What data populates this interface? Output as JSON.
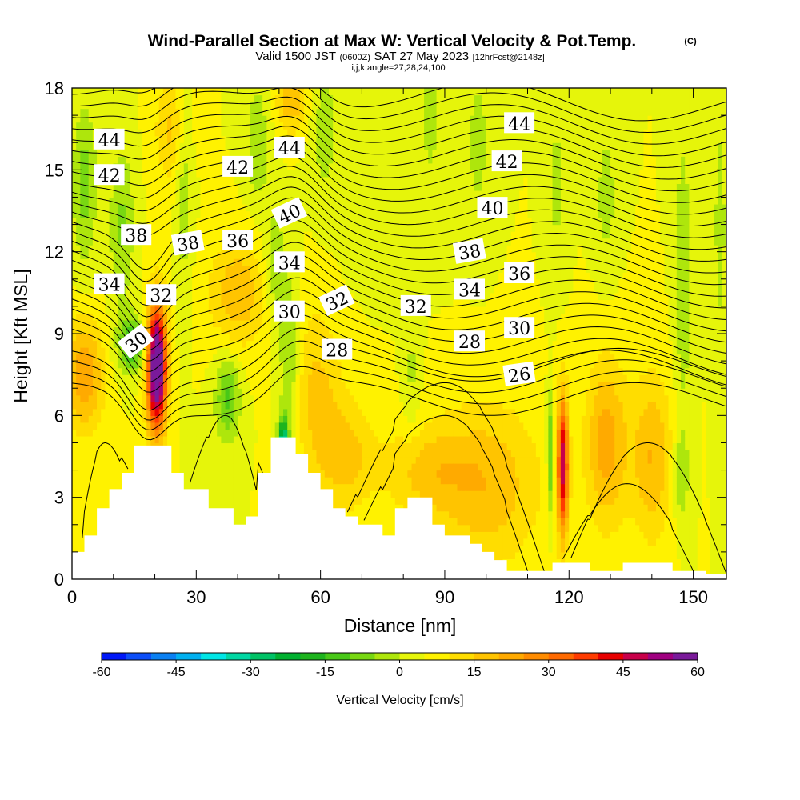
{
  "title": {
    "main": "Wind-Parallel Section at Max W: Vertical Velocity & Pot.Temp.",
    "copyright": "(C)",
    "valid_prefix": "Valid 1500 JST",
    "valid_utc": "(0600Z)",
    "valid_date": "SAT 27 May 2023",
    "forecast": "[12hrFcst@2148z]",
    "params": "i,j,k,angle=27,28,24,100"
  },
  "chart_data": {
    "type": "heatmap",
    "xlabel": "Distance [nm]",
    "ylabel": "Height [Kft MSL]",
    "xlim": [
      0,
      158
    ],
    "ylim": [
      0,
      18
    ],
    "x_ticks": [
      0,
      30,
      60,
      90,
      120,
      150
    ],
    "y_ticks": [
      0,
      3,
      6,
      9,
      12,
      15,
      18
    ],
    "fill_variable": "Vertical Velocity [cm/s]",
    "fill_levels": [
      -60,
      -55,
      -50,
      -45,
      -40,
      -35,
      -30,
      -25,
      -20,
      -15,
      -10,
      -5,
      0,
      5,
      10,
      15,
      20,
      25,
      30,
      35,
      40,
      45,
      50,
      55,
      60
    ],
    "colorbar_ticks": [
      "-60",
      "-45",
      "-30",
      "-15",
      "0",
      "15",
      "30",
      "45",
      "60"
    ],
    "colorbar_colors": [
      "#0018f8",
      "#0c4ef8",
      "#0a80f2",
      "#00b0f0",
      "#00e6e6",
      "#00d7a3",
      "#00c266",
      "#00b030",
      "#1eb41e",
      "#48c818",
      "#78d812",
      "#aee60c",
      "#e6f50a",
      "#fff200",
      "#ffdd00",
      "#ffc400",
      "#ffaa00",
      "#ff8c00",
      "#ff6a00",
      "#ff3c00",
      "#e80000",
      "#c8004a",
      "#a00080",
      "#7a1a9a"
    ],
    "contour_variable": "Potential Temperature",
    "contour_levels": [
      26,
      28,
      30,
      32,
      34,
      36,
      38,
      40,
      42,
      44
    ],
    "contour_labels": [
      {
        "text": "44",
        "x": 9,
        "y": 16.1,
        "angle": 0
      },
      {
        "text": "42",
        "x": 9,
        "y": 14.8,
        "angle": 0
      },
      {
        "text": "38",
        "x": 15.5,
        "y": 12.6,
        "angle": 0
      },
      {
        "text": "34",
        "x": 9,
        "y": 10.8,
        "angle": 0
      },
      {
        "text": "30",
        "x": 15.5,
        "y": 8.7,
        "angle": -38
      },
      {
        "text": "32",
        "x": 21.5,
        "y": 10.4,
        "angle": 0
      },
      {
        "text": "38",
        "x": 28,
        "y": 12.3,
        "angle": -10
      },
      {
        "text": "36",
        "x": 40,
        "y": 12.4,
        "angle": 0
      },
      {
        "text": "42",
        "x": 40,
        "y": 15.1,
        "angle": 0
      },
      {
        "text": "44",
        "x": 52.5,
        "y": 15.8,
        "angle": 0
      },
      {
        "text": "40",
        "x": 52.5,
        "y": 13.4,
        "angle": -25
      },
      {
        "text": "34",
        "x": 52.5,
        "y": 11.6,
        "angle": 0
      },
      {
        "text": "30",
        "x": 52.5,
        "y": 9.8,
        "angle": 0
      },
      {
        "text": "32",
        "x": 64,
        "y": 10.2,
        "angle": -25
      },
      {
        "text": "28",
        "x": 64,
        "y": 8.4,
        "angle": 0
      },
      {
        "text": "32",
        "x": 83,
        "y": 10.0,
        "angle": 0
      },
      {
        "text": "38",
        "x": 96,
        "y": 12.0,
        "angle": -10
      },
      {
        "text": "34",
        "x": 96,
        "y": 10.6,
        "angle": 0
      },
      {
        "text": "28",
        "x": 96,
        "y": 8.7,
        "angle": 0
      },
      {
        "text": "44",
        "x": 108,
        "y": 16.7,
        "angle": 0
      },
      {
        "text": "42",
        "x": 105,
        "y": 15.3,
        "angle": 0
      },
      {
        "text": "40",
        "x": 101.5,
        "y": 13.6,
        "angle": 0
      },
      {
        "text": "36",
        "x": 108,
        "y": 11.2,
        "angle": 0
      },
      {
        "text": "30",
        "x": 108,
        "y": 9.2,
        "angle": 0
      },
      {
        "text": "26",
        "x": 108,
        "y": 7.5,
        "angle": -8
      }
    ],
    "terrain_profile": [
      [
        0,
        1.0
      ],
      [
        1,
        1.0
      ],
      [
        3,
        1.0
      ],
      [
        3,
        1.6
      ],
      [
        6,
        1.6
      ],
      [
        6,
        2.6
      ],
      [
        9,
        2.6
      ],
      [
        9,
        3.3
      ],
      [
        12,
        3.3
      ],
      [
        12,
        3.9
      ],
      [
        15,
        3.9
      ],
      [
        15,
        4.9
      ],
      [
        24,
        4.9
      ],
      [
        24,
        3.9
      ],
      [
        27,
        3.9
      ],
      [
        27,
        3.3
      ],
      [
        33,
        3.3
      ],
      [
        33,
        2.6
      ],
      [
        39,
        2.6
      ],
      [
        39,
        2.0
      ],
      [
        42,
        2.0
      ],
      [
        42,
        2.3
      ],
      [
        45,
        2.3
      ],
      [
        45,
        3.9
      ],
      [
        48,
        3.9
      ],
      [
        48,
        5.2
      ],
      [
        54,
        5.2
      ],
      [
        54,
        4.6
      ],
      [
        57,
        4.6
      ],
      [
        57,
        3.9
      ],
      [
        60,
        3.9
      ],
      [
        60,
        3.3
      ],
      [
        63,
        3.3
      ],
      [
        63,
        2.6
      ],
      [
        66,
        2.6
      ],
      [
        66,
        2.3
      ],
      [
        69,
        2.3
      ],
      [
        69,
        2.0
      ],
      [
        75,
        2.0
      ],
      [
        75,
        1.6
      ],
      [
        78,
        1.6
      ],
      [
        78,
        2.6
      ],
      [
        81,
        2.6
      ],
      [
        81,
        3.0
      ],
      [
        87,
        3.0
      ],
      [
        87,
        2.0
      ],
      [
        90,
        2.0
      ],
      [
        90,
        1.6
      ],
      [
        96,
        1.6
      ],
      [
        96,
        1.3
      ],
      [
        99,
        1.3
      ],
      [
        99,
        1.0
      ],
      [
        102,
        1.0
      ],
      [
        102,
        0.7
      ],
      [
        105,
        0.7
      ],
      [
        105,
        0.3
      ],
      [
        116,
        0.3
      ],
      [
        116,
        0.6
      ],
      [
        125,
        0.6
      ],
      [
        125,
        0.3
      ],
      [
        133,
        0.3
      ],
      [
        133,
        0.6
      ],
      [
        145,
        0.6
      ],
      [
        145,
        0.3
      ],
      [
        153,
        0.3
      ],
      [
        153,
        0.2
      ]
    ],
    "w_features": [
      {
        "x": 20.5,
        "y": 7.8,
        "sx": 2.3,
        "sy": 2.3,
        "w": 65
      },
      {
        "x": 14.5,
        "y": 8.6,
        "sx": 3.5,
        "sy": 1.0,
        "w": -20
      },
      {
        "x": 37.5,
        "y": 6.6,
        "sx": 3.0,
        "sy": 1.6,
        "w": -16
      },
      {
        "x": 51,
        "y": 4.8,
        "sx": 1.2,
        "sy": 1.0,
        "w": -45
      },
      {
        "x": 52.5,
        "y": 8.0,
        "sx": 2.5,
        "sy": 3.2,
        "w": -12
      },
      {
        "x": 49,
        "y": 11.5,
        "sx": 2.5,
        "sy": 2.0,
        "w": -10
      },
      {
        "x": 118.5,
        "y": 4.2,
        "sx": 1.3,
        "sy": 2.5,
        "w": 42
      },
      {
        "x": 115.5,
        "y": 4.5,
        "sx": 0.8,
        "sy": 2.3,
        "w": -18
      },
      {
        "x": 129,
        "y": 5.0,
        "sx": 5,
        "sy": 3,
        "w": 18
      },
      {
        "x": 100,
        "y": 3.5,
        "sx": 13,
        "sy": 3.0,
        "w": 14
      },
      {
        "x": 140,
        "y": 4.5,
        "sx": 5,
        "sy": 3.0,
        "w": 15
      },
      {
        "x": 3,
        "y": 7.5,
        "sx": 4.5,
        "sy": 2.0,
        "w": 20
      },
      {
        "x": 40,
        "y": 10.5,
        "sx": 7,
        "sy": 2.0,
        "w": 14
      },
      {
        "x": 59,
        "y": 7,
        "sx": 6,
        "sy": 3.0,
        "w": 11
      },
      {
        "x": 66,
        "y": 4.5,
        "sx": 7,
        "sy": 2.0,
        "w": 12
      },
      {
        "x": 85,
        "y": 4.0,
        "sx": 10,
        "sy": 1.6,
        "w": 10
      },
      {
        "x": 24,
        "y": 16.5,
        "sx": 4,
        "sy": 2.0,
        "w": 11
      },
      {
        "x": 53,
        "y": 17.5,
        "sx": 4,
        "sy": 1.2,
        "w": 13
      },
      {
        "x": 3,
        "y": 14.5,
        "sx": 3,
        "sy": 3.0,
        "w": -12
      },
      {
        "x": 12,
        "y": 13.0,
        "sx": 3,
        "sy": 3.0,
        "w": -11
      },
      {
        "x": 27,
        "y": 14.5,
        "sx": 2,
        "sy": 4.0,
        "w": -9
      },
      {
        "x": 45,
        "y": 16.0,
        "sx": 3,
        "sy": 2.5,
        "w": -9
      },
      {
        "x": 61,
        "y": 16.5,
        "sx": 3.5,
        "sy": 2.5,
        "w": -8
      },
      {
        "x": 78,
        "y": 11.8,
        "sx": 9,
        "sy": 1.2,
        "w": -5
      },
      {
        "x": 82,
        "y": 7.5,
        "sx": 2,
        "sy": 2.5,
        "w": -6
      },
      {
        "x": 86.5,
        "y": 17.0,
        "sx": 1.8,
        "sy": 2.0,
        "w": -10
      },
      {
        "x": 98,
        "y": 16.0,
        "sx": 3,
        "sy": 3.0,
        "w": -7
      },
      {
        "x": 117,
        "y": 14.5,
        "sx": 2,
        "sy": 3.0,
        "w": -7
      },
      {
        "x": 129,
        "y": 14.0,
        "sx": 2.5,
        "sy": 2.5,
        "w": -8
      },
      {
        "x": 147.5,
        "y": 11,
        "sx": 2,
        "sy": 6.0,
        "w": -9
      },
      {
        "x": 156.5,
        "y": 13,
        "sx": 1.8,
        "sy": 5.0,
        "w": -7
      },
      {
        "x": 147,
        "y": 3.8,
        "sx": 2,
        "sy": 1.6,
        "w": -9
      }
    ]
  }
}
